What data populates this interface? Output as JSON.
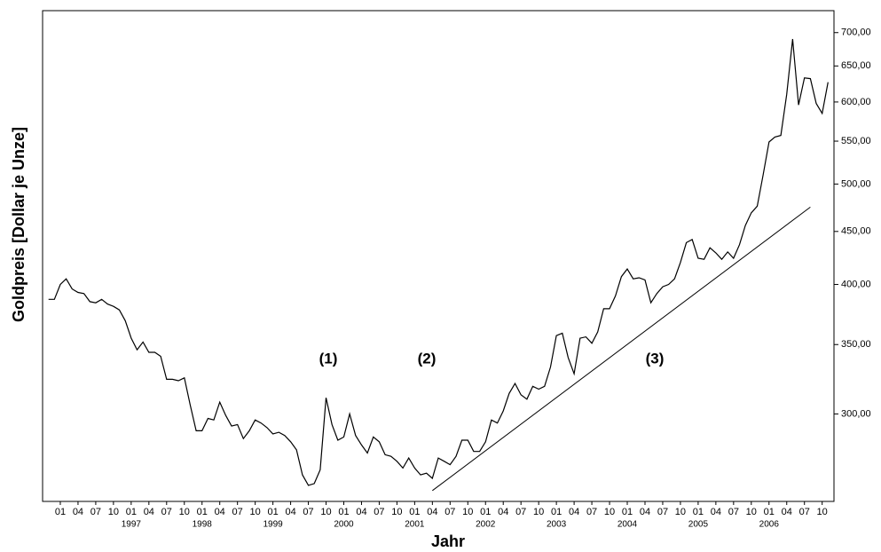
{
  "chart_data": {
    "type": "line",
    "ylabel": "Goldpreis [Dollar je Unze]",
    "xlabel": "Jahr",
    "log_scale_y": true,
    "y_axis_side": "right",
    "color": "#000000",
    "x": [
      "1995-11",
      "1995-12",
      "1996-01",
      "1996-02",
      "1996-03",
      "1996-04",
      "1996-05",
      "1996-06",
      "1996-07",
      "1996-08",
      "1996-09",
      "1996-10",
      "1996-11",
      "1996-12",
      "1997-01",
      "1997-02",
      "1997-03",
      "1997-04",
      "1997-05",
      "1997-06",
      "1997-07",
      "1997-08",
      "1997-09",
      "1997-10",
      "1997-11",
      "1997-12",
      "1998-01",
      "1998-02",
      "1998-03",
      "1998-04",
      "1998-05",
      "1998-06",
      "1998-07",
      "1998-08",
      "1998-09",
      "1998-10",
      "1998-11",
      "1998-12",
      "1999-01",
      "1999-02",
      "1999-03",
      "1999-04",
      "1999-05",
      "1999-06",
      "1999-07",
      "1999-08",
      "1999-09",
      "1999-10",
      "1999-11",
      "1999-12",
      "2000-01",
      "2000-02",
      "2000-03",
      "2000-04",
      "2000-05",
      "2000-06",
      "2000-07",
      "2000-08",
      "2000-09",
      "2000-10",
      "2000-11",
      "2000-12",
      "2001-01",
      "2001-02",
      "2001-03",
      "2001-04",
      "2001-05",
      "2001-06",
      "2001-07",
      "2001-08",
      "2001-09",
      "2001-10",
      "2001-11",
      "2001-12",
      "2002-01",
      "2002-02",
      "2002-03",
      "2002-04",
      "2002-05",
      "2002-06",
      "2002-07",
      "2002-08",
      "2002-09",
      "2002-10",
      "2002-11",
      "2002-12",
      "2003-01",
      "2003-02",
      "2003-03",
      "2003-04",
      "2003-05",
      "2003-06",
      "2003-07",
      "2003-08",
      "2003-09",
      "2003-10",
      "2003-11",
      "2003-12",
      "2004-01",
      "2004-02",
      "2004-03",
      "2004-04",
      "2004-05",
      "2004-06",
      "2004-07",
      "2004-08",
      "2004-09",
      "2004-10",
      "2004-11",
      "2004-12",
      "2005-01",
      "2005-02",
      "2005-03",
      "2005-04",
      "2005-05",
      "2005-06",
      "2005-07",
      "2005-08",
      "2005-09",
      "2005-10",
      "2005-11",
      "2005-12",
      "2006-01",
      "2006-02",
      "2006-03",
      "2006-04",
      "2006-05",
      "2006-06",
      "2006-07",
      "2006-08",
      "2006-09",
      "2006-10",
      "2006-11"
    ],
    "values": [
      387,
      387,
      400,
      405,
      396,
      393,
      392,
      385,
      384,
      387,
      383,
      381,
      378,
      369,
      355,
      346,
      352,
      344,
      344,
      341,
      324,
      324,
      323,
      325,
      306,
      289,
      289,
      297,
      296,
      308,
      299,
      292,
      293,
      284,
      289,
      296,
      294,
      291,
      287,
      288,
      286,
      282,
      277,
      262,
      256,
      257,
      265,
      311,
      293,
      283,
      285,
      300,
      286,
      280,
      275,
      285,
      282,
      274,
      273,
      270,
      266,
      272,
      266,
      262,
      263,
      260,
      272,
      270,
      268,
      273,
      283,
      283,
      276,
      276,
      282,
      296,
      294,
      302,
      314,
      321,
      313,
      310,
      319,
      317,
      319,
      333,
      357,
      359,
      340,
      328,
      355,
      356,
      351,
      360,
      379,
      379,
      390,
      407,
      414,
      405,
      406,
      404,
      384,
      392,
      398,
      400,
      405,
      420,
      439,
      442,
      424,
      423,
      434,
      429,
      423,
      430,
      424,
      437,
      456,
      469,
      476,
      510,
      549,
      555,
      557,
      610,
      690,
      596,
      633,
      632,
      598,
      585,
      627
    ],
    "xlim": [
      "1995-10",
      "2006-12"
    ],
    "ylim": [
      247,
      735
    ],
    "yticks": [
      {
        "value": 300,
        "label": "300,00"
      },
      {
        "value": 350,
        "label": "350,00"
      },
      {
        "value": 400,
        "label": "400,00"
      },
      {
        "value": 450,
        "label": "450,00"
      },
      {
        "value": 500,
        "label": "500,00"
      },
      {
        "value": 550,
        "label": "550,00"
      },
      {
        "value": 600,
        "label": "600,00"
      },
      {
        "value": 650,
        "label": "650,00"
      },
      {
        "value": 700,
        "label": "700,00"
      }
    ],
    "xticks": [
      {
        "value": "1996-01",
        "label": "01"
      },
      {
        "value": "1996-04",
        "label": "04"
      },
      {
        "value": "1996-07",
        "label": "07"
      },
      {
        "value": "1996-10",
        "label": "10"
      },
      {
        "value": "1997-01",
        "label": "01"
      },
      {
        "value": "1997-04",
        "label": "04"
      },
      {
        "value": "1997-07",
        "label": "07"
      },
      {
        "value": "1997-10",
        "label": "10"
      },
      {
        "value": "1998-01",
        "label": "01"
      },
      {
        "value": "1998-04",
        "label": "04"
      },
      {
        "value": "1998-07",
        "label": "07"
      },
      {
        "value": "1998-10",
        "label": "10"
      },
      {
        "value": "1999-01",
        "label": "01"
      },
      {
        "value": "1999-04",
        "label": "04"
      },
      {
        "value": "1999-07",
        "label": "07"
      },
      {
        "value": "1999-10",
        "label": "10"
      },
      {
        "value": "2000-01",
        "label": "01"
      },
      {
        "value": "2000-04",
        "label": "04"
      },
      {
        "value": "2000-07",
        "label": "07"
      },
      {
        "value": "2000-10",
        "label": "10"
      },
      {
        "value": "2001-01",
        "label": "01"
      },
      {
        "value": "2001-04",
        "label": "04"
      },
      {
        "value": "2001-07",
        "label": "07"
      },
      {
        "value": "2001-10",
        "label": "10"
      },
      {
        "value": "2002-01",
        "label": "01"
      },
      {
        "value": "2002-04",
        "label": "04"
      },
      {
        "value": "2002-07",
        "label": "07"
      },
      {
        "value": "2002-10",
        "label": "10"
      },
      {
        "value": "2003-01",
        "label": "01"
      },
      {
        "value": "2003-04",
        "label": "04"
      },
      {
        "value": "2003-07",
        "label": "07"
      },
      {
        "value": "2003-10",
        "label": "10"
      },
      {
        "value": "2004-01",
        "label": "01"
      },
      {
        "value": "2004-04",
        "label": "04"
      },
      {
        "value": "2004-07",
        "label": "07"
      },
      {
        "value": "2004-10",
        "label": "10"
      },
      {
        "value": "2005-01",
        "label": "01"
      },
      {
        "value": "2005-04",
        "label": "04"
      },
      {
        "value": "2005-07",
        "label": "07"
      },
      {
        "value": "2005-10",
        "label": "10"
      },
      {
        "value": "2006-01",
        "label": "01"
      },
      {
        "value": "2006-04",
        "label": "04"
      },
      {
        "value": "2006-07",
        "label": "07"
      },
      {
        "value": "2006-10",
        "label": "10"
      }
    ],
    "year_labels": [
      {
        "value": "1997-01",
        "label": "1997"
      },
      {
        "value": "1998-01",
        "label": "1998"
      },
      {
        "value": "1999-01",
        "label": "1999"
      },
      {
        "value": "2000-01",
        "label": "2000"
      },
      {
        "value": "2001-01",
        "label": "2001"
      },
      {
        "value": "2002-01",
        "label": "2002"
      },
      {
        "value": "2003-01",
        "label": "2003"
      },
      {
        "value": "2004-01",
        "label": "2004"
      },
      {
        "value": "2005-01",
        "label": "2005"
      },
      {
        "value": "2006-01",
        "label": "2006"
      }
    ],
    "trendline": {
      "x": [
        "2001-04",
        "2006-08"
      ],
      "values": [
        253,
        475
      ]
    },
    "annotations": [
      "(1)",
      "(2)",
      "(3)"
    ]
  }
}
